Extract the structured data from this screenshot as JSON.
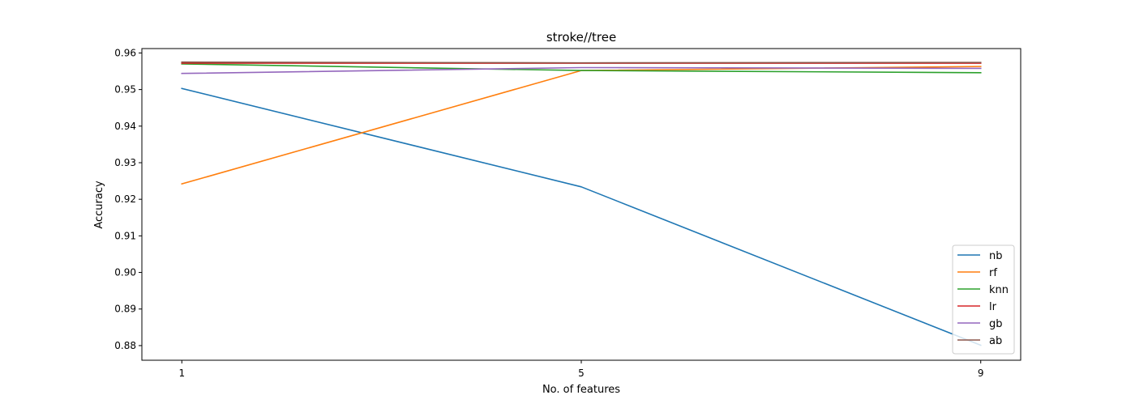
{
  "chart_data": {
    "type": "line",
    "title": "stroke//tree",
    "xlabel": "No. of features",
    "ylabel": "Accuracy",
    "x": [
      1,
      5,
      9
    ],
    "xlim": [
      0.6,
      9.4
    ],
    "ylim": [
      0.876,
      0.9612
    ],
    "xticks": [
      1,
      5,
      9
    ],
    "xtick_labels": [
      "1",
      "5",
      "9"
    ],
    "yticks": [
      0.88,
      0.89,
      0.9,
      0.91,
      0.92,
      0.93,
      0.94,
      0.95,
      0.96
    ],
    "ytick_labels": [
      "0.88",
      "0.89",
      "0.90",
      "0.91",
      "0.92",
      "0.93",
      "0.94",
      "0.95",
      "0.96"
    ],
    "grid": false,
    "legend_position": "lower-right",
    "series": [
      {
        "name": "nb",
        "color": "#1f77b4",
        "values": [
          0.9503,
          0.9234,
          0.8801
        ]
      },
      {
        "name": "rf",
        "color": "#ff7f0e",
        "values": [
          0.9242,
          0.9552,
          0.9563
        ]
      },
      {
        "name": "knn",
        "color": "#2ca02c",
        "values": [
          0.957,
          0.9552,
          0.9546
        ]
      },
      {
        "name": "lr",
        "color": "#d62728",
        "values": [
          0.9572,
          0.9572,
          0.9572
        ]
      },
      {
        "name": "gb",
        "color": "#9467bd",
        "values": [
          0.9544,
          0.956,
          0.9558
        ]
      },
      {
        "name": "ab",
        "color": "#8c564b",
        "values": [
          0.9575,
          0.9573,
          0.9574
        ]
      }
    ]
  }
}
